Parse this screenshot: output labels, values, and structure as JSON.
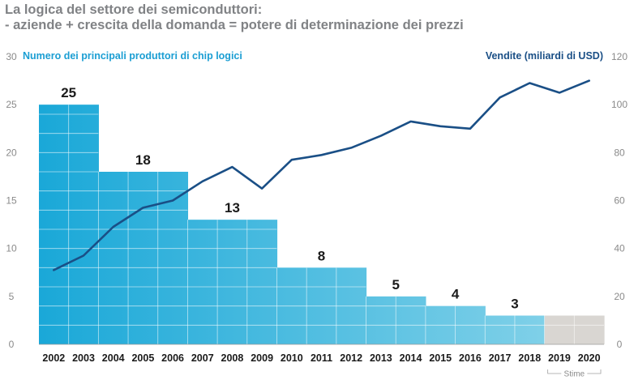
{
  "title_line1": "La logica del settore dei semiconduttori:",
  "title_line2": "- aziende + crescita della domanda = potere di determinazione dei prezzi",
  "chart_data": {
    "type": "bar",
    "title": "La logica del settore dei semiconduttori: - aziende + crescita della domanda = potere di determinazione dei prezzi",
    "categories": [
      "2002",
      "2003",
      "2004",
      "2005",
      "2006",
      "2007",
      "2008",
      "2009",
      "2010",
      "2011",
      "2012",
      "2013",
      "2014",
      "2015",
      "2016",
      "2017",
      "2018",
      "2019",
      "2020"
    ],
    "left_axis": {
      "label": "Numero dei principali produttori di chip logici",
      "ylim": [
        0,
        30
      ],
      "ticks": [
        "0",
        "5",
        "10",
        "15",
        "20",
        "25",
        "30"
      ]
    },
    "right_axis": {
      "label": "Vendite (miliardi di USD)",
      "ylim": [
        0,
        120
      ],
      "ticks": [
        "0",
        "20",
        "40",
        "60",
        "80",
        "100",
        "120"
      ]
    },
    "bar_series": {
      "name": "Numero dei principali produttori di chip logici",
      "values": [
        25,
        25,
        18,
        18,
        18,
        13,
        13,
        13,
        8,
        8,
        8,
        5,
        5,
        4,
        4,
        3,
        3,
        3,
        3
      ],
      "estimate_from_index": 17
    },
    "bar_groups": [
      {
        "label": "25",
        "start": 0,
        "end": 1
      },
      {
        "label": "18",
        "start": 2,
        "end": 4
      },
      {
        "label": "13",
        "start": 5,
        "end": 7
      },
      {
        "label": "8",
        "start": 8,
        "end": 10
      },
      {
        "label": "5",
        "start": 11,
        "end": 12
      },
      {
        "label": "4",
        "start": 13,
        "end": 14
      },
      {
        "label": "3",
        "start": 15,
        "end": 16
      }
    ],
    "line_series": {
      "name": "Vendite (miliardi di USD)",
      "axis": "right",
      "values": [
        31,
        37,
        49,
        57,
        60,
        68,
        74,
        65,
        77,
        79,
        82,
        87,
        93,
        91,
        90,
        103,
        109,
        105,
        110
      ]
    },
    "estimate_label": "Stime",
    "colors": {
      "bar_top": "#1aa8d8",
      "bar_bottom": "#7fd0e8",
      "estimate": "#d9d6d2",
      "line": "#1a4f86",
      "left_axis_text": "#1b9ed3",
      "right_axis_text": "#1a4f86",
      "tick_text": "#8a8a8a"
    },
    "legend": "none",
    "grid": false
  }
}
